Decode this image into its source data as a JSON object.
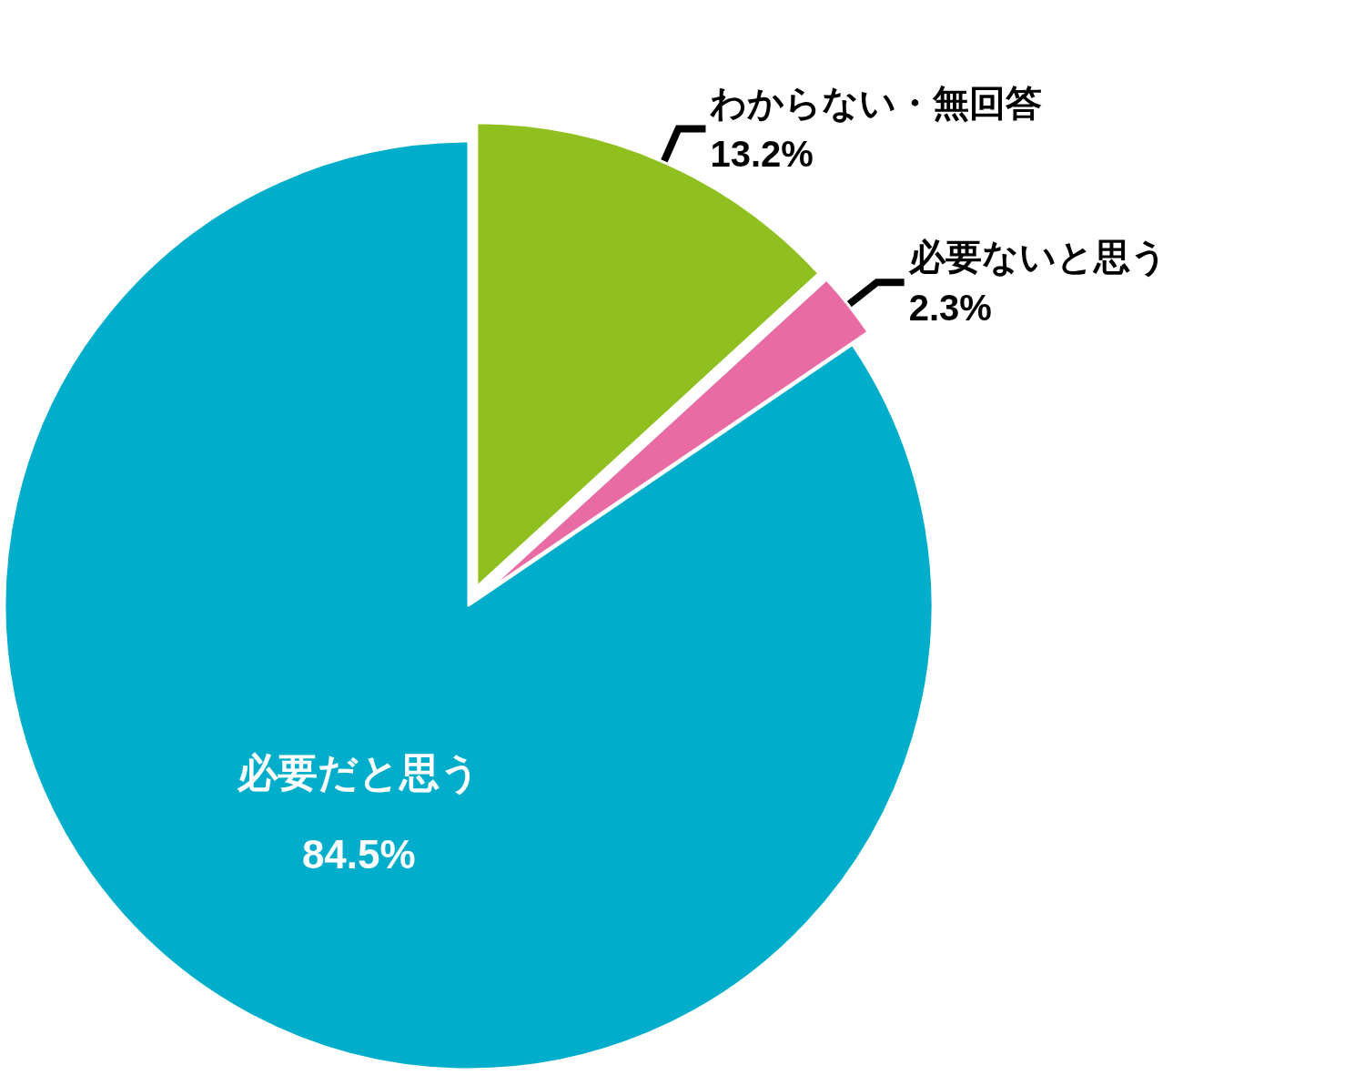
{
  "chart_data": {
    "type": "pie",
    "categories": [
      "わからない・無回答",
      "必要ないと思う",
      "必要だと思う"
    ],
    "values": [
      13.2,
      2.3,
      84.5
    ],
    "colors": [
      "#8fc01f",
      "#e96ba4",
      "#00aecb"
    ],
    "value_labels": [
      "13.2%",
      "2.3%",
      "84.5%"
    ],
    "legend": false
  }
}
